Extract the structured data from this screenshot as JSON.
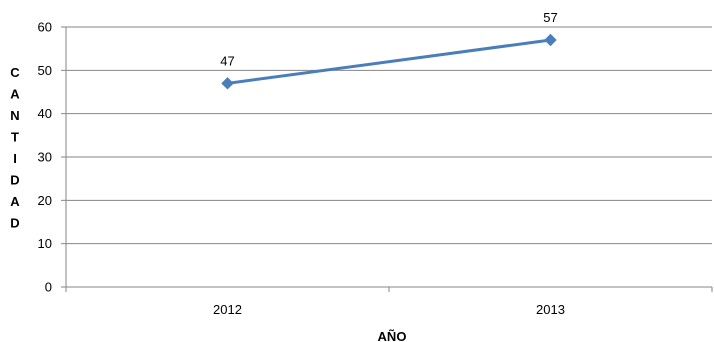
{
  "chart_data": {
    "type": "line",
    "title": "",
    "xlabel": "AÑO",
    "ylabel": "CANTIDAD",
    "categories": [
      "2012",
      "2013"
    ],
    "series": [
      {
        "values": [
          47,
          57
        ],
        "color": "#4a7ebb"
      }
    ],
    "ylim": [
      0,
      60
    ],
    "yticks": [
      0,
      10,
      20,
      30,
      40,
      50,
      60
    ],
    "grid": true,
    "gridlines": "horizontal",
    "marker": "diamond",
    "data_labels": true,
    "legend": "none"
  }
}
